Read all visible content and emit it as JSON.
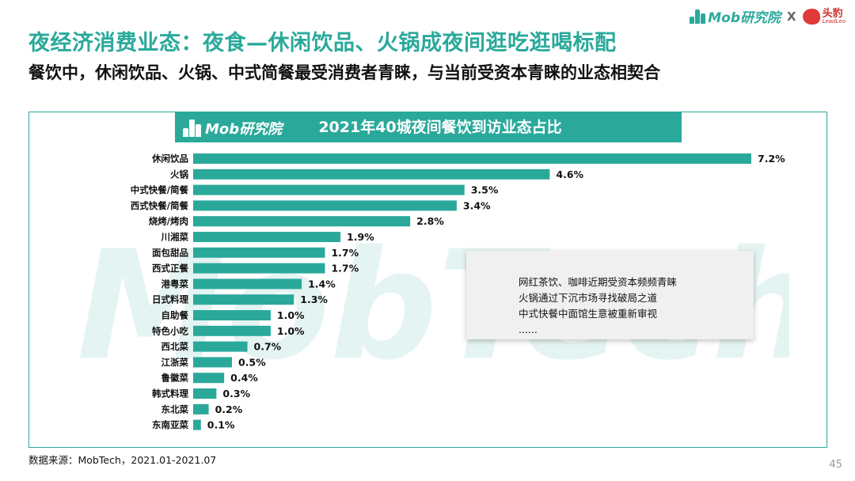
{
  "header": {
    "mob_logo_text": "Mob研究院",
    "separator": "X",
    "lead_logo_cn": "头豹",
    "lead_logo_en": "LeadLeo"
  },
  "title": "夜经济消费业态：夜食—休闲饮品、火锅成夜间逛吃逛喝标配",
  "subtitle": "餐饮中，休闲饮品、火锅、中式简餐最受消费者青睐，与当前受资本青睐的业态相契合",
  "panel": {
    "header_logo_text": "Mob研究院",
    "watermark_text": "MobTech"
  },
  "chart_data": {
    "type": "bar",
    "orientation": "horizontal",
    "title": "2021年40城夜间餐饮到访业态占比",
    "categories": [
      "休闲饮品",
      "火锅",
      "中式快餐/简餐",
      "西式快餐/简餐",
      "烧烤/烤肉",
      "川湘菜",
      "面包甜品",
      "西式正餐",
      "港粤菜",
      "日式料理",
      "自助餐",
      "特色小吃",
      "西北菜",
      "江浙菜",
      "鲁徽菜",
      "韩式料理",
      "东北菜",
      "东南亚菜"
    ],
    "values": [
      7.2,
      4.6,
      3.5,
      3.4,
      2.8,
      1.9,
      1.7,
      1.7,
      1.4,
      1.3,
      1.0,
      1.0,
      0.7,
      0.5,
      0.4,
      0.3,
      0.2,
      0.1
    ],
    "value_labels": [
      "7.2%",
      "4.6%",
      "3.5%",
      "3.4%",
      "2.8%",
      "1.9%",
      "1.7%",
      "1.7%",
      "1.4%",
      "1.3%",
      "1.0%",
      "1.0%",
      "0.7%",
      "0.5%",
      "0.4%",
      "0.3%",
      "0.2%",
      "0.1%"
    ],
    "unit": "%",
    "bar_color": "#2aa99b",
    "grid": false,
    "legend": "none"
  },
  "note": {
    "lines": [
      "网红茶饮、咖啡近期受资本频频青睐",
      "火锅通过下沉市场寻找破局之道",
      "中式快餐中面馆生意被重新审视",
      "......"
    ]
  },
  "source": "数据来源：MobTech，2021.01-2021.07",
  "page_number": "45",
  "colors": {
    "accent": "#2aa99b",
    "lead_red": "#d12b2b"
  }
}
